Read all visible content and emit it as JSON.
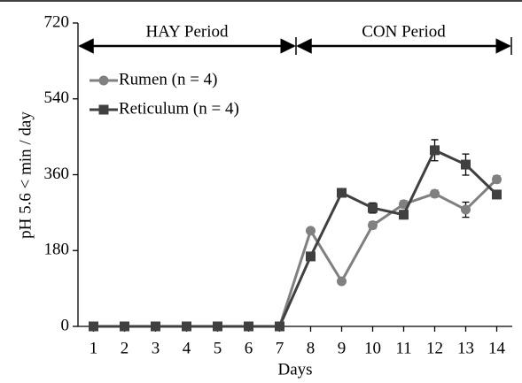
{
  "chart_data": {
    "type": "line",
    "y_label": "pH 5.6 < min / day",
    "x_label": "Days",
    "annotations": [
      "HAY Period",
      "CON Period"
    ],
    "x": [
      1,
      2,
      3,
      4,
      5,
      6,
      7,
      8,
      9,
      10,
      11,
      12,
      13,
      14
    ],
    "xlim": [
      0.5,
      14.5
    ],
    "xticks": [
      1,
      2,
      3,
      4,
      5,
      6,
      7,
      8,
      9,
      10,
      11,
      12,
      13,
      14
    ],
    "ylim": [
      0,
      720
    ],
    "yticks": [
      0,
      180,
      360,
      540,
      720
    ],
    "legend": "upper left",
    "series": [
      {
        "name": "Rumen (n = 4)",
        "color": "#808080",
        "marker": "circle",
        "values": [
          0,
          0,
          0,
          0,
          0,
          0,
          0,
          227,
          107,
          240,
          290,
          315,
          277,
          349
        ],
        "errors": [
          0,
          0,
          0,
          0,
          0,
          0,
          0,
          5,
          5,
          8,
          8,
          8,
          18,
          8
        ]
      },
      {
        "name": "Reticulum (n = 4)",
        "color": "#404040",
        "marker": "square",
        "values": [
          0,
          0,
          0,
          0,
          0,
          0,
          0,
          166,
          317,
          281,
          265,
          418,
          384,
          313
        ],
        "errors": [
          0,
          0,
          0,
          0,
          0,
          0,
          0,
          6,
          10,
          12,
          10,
          25,
          25,
          10
        ]
      }
    ]
  }
}
